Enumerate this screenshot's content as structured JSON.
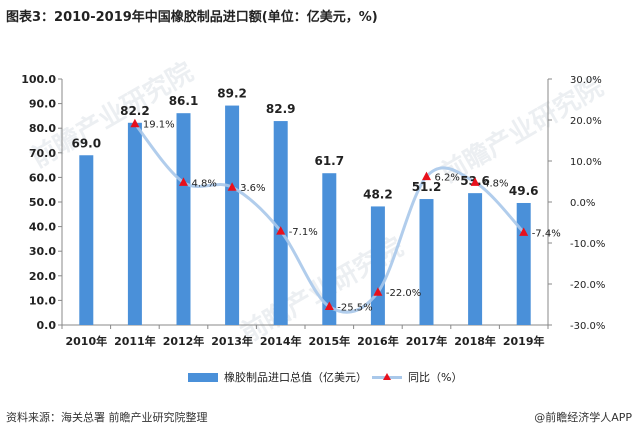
{
  "title": "图表3：2010-2019年中国橡胶制品进口额(单位：亿美元，%)",
  "source": "资料来源：海关总署  前瞻产业研究院整理",
  "brand": "@前瞻经济学人APP",
  "watermark": "前瞻产业研究院",
  "colors": {
    "bar": "#4a90d9",
    "line": "#a9c8ea",
    "marker": "#e8101c"
  },
  "chart_data": {
    "type": "bar",
    "categories": [
      "2010年",
      "2011年",
      "2012年",
      "2013年",
      "2014年",
      "2015年",
      "2016年",
      "2017年",
      "2018年",
      "2019年"
    ],
    "series": [
      {
        "name": "橡胶制品进口总值（亿美元）",
        "type": "bar",
        "axis": "left",
        "values": [
          69.0,
          82.2,
          86.1,
          89.2,
          82.9,
          61.7,
          48.2,
          51.2,
          53.6,
          49.6
        ],
        "labels": [
          "69.0",
          "82.2",
          "86.1",
          "89.2",
          "82.9",
          "61.7",
          "48.2",
          "51.2",
          "53.6",
          "49.6"
        ]
      },
      {
        "name": "同比（%）",
        "type": "line",
        "axis": "right",
        "values": [
          null,
          19.1,
          4.8,
          3.6,
          -7.1,
          -25.5,
          -22.0,
          6.2,
          4.8,
          -7.4
        ],
        "labels": [
          "",
          "19.1%",
          "4.8%",
          "3.6%",
          "-7.1%",
          "-25.5%",
          "-22.0%",
          "6.2%",
          "4.8%",
          "-7.4%"
        ]
      }
    ],
    "y_left": {
      "min": 0,
      "max": 100,
      "step": 10,
      "ticks": [
        "0.0",
        "10.0",
        "20.0",
        "30.0",
        "40.0",
        "50.0",
        "60.0",
        "70.0",
        "80.0",
        "90.0",
        "100.0"
      ]
    },
    "y_right": {
      "min": -30,
      "max": 30,
      "step": 10,
      "ticks": [
        "-30.0%",
        "-20.0%",
        "-10.0%",
        "0.0%",
        "10.0%",
        "20.0%",
        "30.0%"
      ]
    },
    "grid": false,
    "legend": "bottom"
  }
}
